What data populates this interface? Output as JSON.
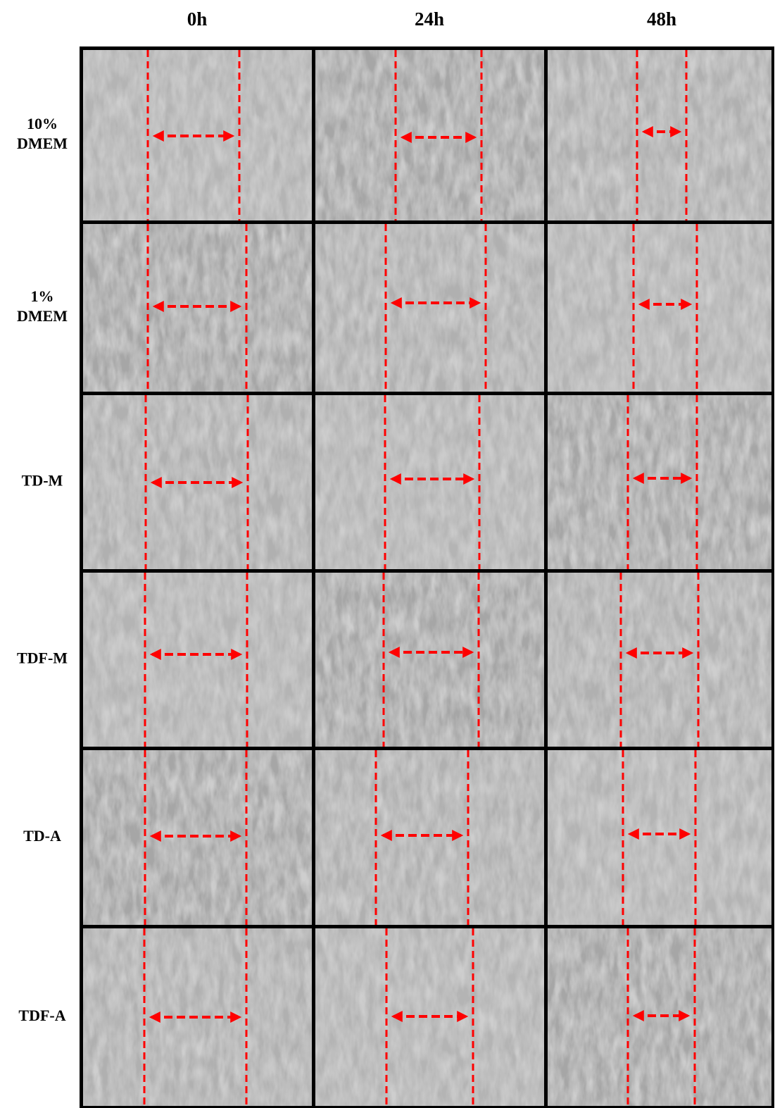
{
  "columns": [
    "0h",
    "24h",
    "48h"
  ],
  "rows": [
    {
      "label": [
        "10%",
        "DMEM"
      ]
    },
    {
      "label": [
        "1%",
        "DMEM"
      ]
    },
    {
      "label": [
        "TD-M"
      ]
    },
    {
      "label": [
        "TDF-M"
      ]
    },
    {
      "label": [
        "TD-A"
      ]
    },
    {
      "label": [
        "TDF-A"
      ]
    }
  ]
}
